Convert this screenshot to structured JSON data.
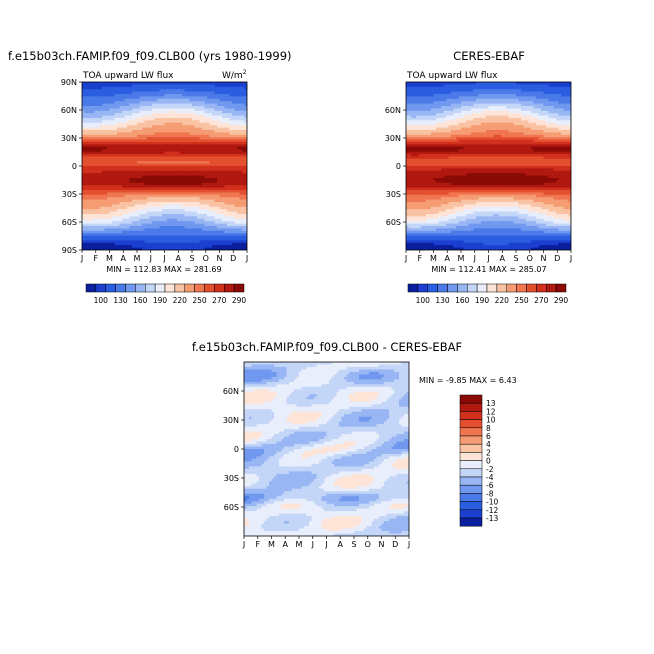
{
  "chart_data": [
    {
      "type": "heatmap",
      "title": "f.e15b03ch.FAMIP.f09_f09.CLB00 (yrs 1980-1999)",
      "subtitle_left": "TOA upward LW flux",
      "subtitle_right": "W/m",
      "subtitle_right_sup": "2",
      "x_ticks": [
        "J",
        "F",
        "M",
        "A",
        "M",
        "J",
        "J",
        "A",
        "S",
        "O",
        "N",
        "D",
        "J"
      ],
      "y_ticks": [
        "90N",
        "60N",
        "30N",
        "0",
        "30S",
        "60S",
        "90S"
      ],
      "ylim": [
        -90,
        90
      ],
      "stats": "MIN = 112.83  MAX = 281.69",
      "peak_ns": 281.69
    },
    {
      "type": "heatmap",
      "title": "CERES-EBAF",
      "subtitle_left": "TOA upward LW flux",
      "subtitle_right": "",
      "subtitle_right_sup": "",
      "x_ticks": [
        "J",
        "F",
        "M",
        "A",
        "M",
        "J",
        "J",
        "A",
        "S",
        "O",
        "N",
        "D",
        "J"
      ],
      "y_ticks": [
        "60N",
        "30N",
        "0",
        "30S",
        "60S"
      ],
      "ylim": [
        -90,
        90
      ],
      "stats": "MIN = 112.41  MAX = 285.07",
      "peak_ns": 285.07
    },
    {
      "type": "heatmap",
      "title": "f.e15b03ch.FAMIP.f09_f09.CLB00 - CERES-EBAF",
      "x_ticks": [
        "J",
        "F",
        "M",
        "A",
        "M",
        "J",
        "J",
        "A",
        "S",
        "O",
        "N",
        "D",
        "J"
      ],
      "y_ticks": [
        "60N",
        "30N",
        "0",
        "30S",
        "60S"
      ],
      "ylim": [
        -90,
        90
      ],
      "stats": "MIN =  -9.85  MAX =   6.43"
    }
  ],
  "colorbar_abs": {
    "labels": [
      "100",
      "130",
      "160",
      "190",
      "220",
      "250",
      "270",
      "290"
    ],
    "colors": [
      "#0a1f9e",
      "#1b3fcf",
      "#2a5de0",
      "#4a7ae8",
      "#7098ef",
      "#98b6f4",
      "#c4d6f8",
      "#e8eefb",
      "#fde4d6",
      "#f9c2a2",
      "#f59c72",
      "#ef7650",
      "#e4502f",
      "#d0301c",
      "#b01810",
      "#8a0a06"
    ]
  },
  "colorbar_diff": {
    "labels": [
      "13",
      "12",
      "10",
      "8",
      "6",
      "4",
      "2",
      "0",
      "-2",
      "-4",
      "-6",
      "-8",
      "-10",
      "-12",
      "-13"
    ],
    "colors": [
      "#8a0a06",
      "#b01810",
      "#d0301c",
      "#e4502f",
      "#ef7650",
      "#f59c72",
      "#f9c2a2",
      "#fde4d6",
      "#e8eefb",
      "#c4d6f8",
      "#98b6f4",
      "#7098ef",
      "#4a7ae8",
      "#2a5de0",
      "#1b3fcf",
      "#0a1f9e"
    ]
  }
}
